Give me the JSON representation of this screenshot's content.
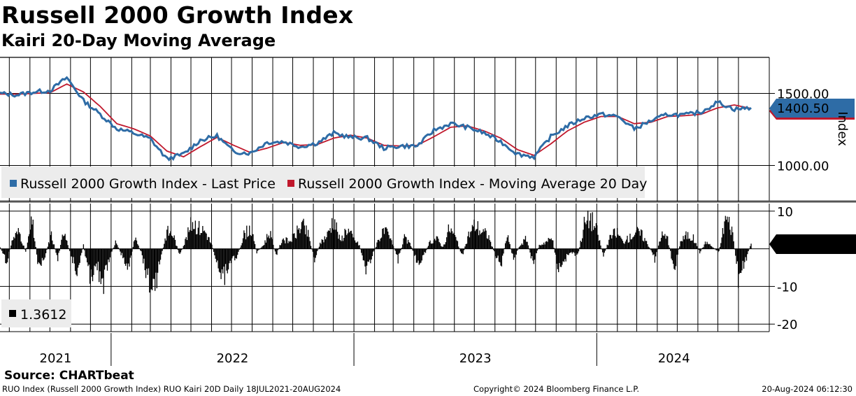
{
  "header": {
    "title": "Russell 2000 Growth Index",
    "subtitle": "Kairi 20-Day Moving Average"
  },
  "chart_data": [
    {
      "type": "line",
      "panel": "price",
      "y_axis_label": "Index",
      "ylim": [
        750,
        1750
      ],
      "y_ticks": [
        1000,
        1500
      ],
      "y_tick_labels": [
        "1000.00",
        "1500.00"
      ],
      "x_tick_labels": [
        "2021",
        "2022",
        "2023",
        "2024"
      ],
      "x_range": [
        "2021-07-18",
        "2024-08-20"
      ],
      "x_step_months": 1,
      "series": [
        {
          "name": "Russell 2000 Growth Index - Last Price",
          "color": "#2e6ca6",
          "last_value_label": "1400.50",
          "values": [
            1500,
            1490,
            1510,
            1520,
            1610,
            1450,
            1355,
            1255,
            1225,
            1185,
            1045,
            1080,
            1175,
            1205,
            1095,
            1085,
            1160,
            1165,
            1130,
            1155,
            1225,
            1195,
            1190,
            1120,
            1135,
            1135,
            1245,
            1290,
            1265,
            1225,
            1165,
            1080,
            1060,
            1200,
            1275,
            1330,
            1355,
            1340,
            1255,
            1310,
            1355,
            1350,
            1370,
            1440,
            1390,
            1400
          ]
        },
        {
          "name": "Russell 2000 Growth Index - Moving Average 20 Day",
          "color": "#c0182c",
          "values": [
            1495,
            1495,
            1500,
            1505,
            1565,
            1510,
            1410,
            1290,
            1255,
            1205,
            1100,
            1060,
            1130,
            1195,
            1140,
            1090,
            1120,
            1160,
            1140,
            1145,
            1190,
            1210,
            1190,
            1140,
            1135,
            1140,
            1200,
            1265,
            1275,
            1240,
            1190,
            1110,
            1070,
            1150,
            1240,
            1300,
            1340,
            1340,
            1290,
            1300,
            1340,
            1345,
            1355,
            1400,
            1420,
            1395
          ]
        }
      ]
    },
    {
      "type": "bar",
      "panel": "kairi",
      "ylim": [
        -22,
        12
      ],
      "y_ticks": [
        10,
        -10,
        -20
      ],
      "y_tick_labels": [
        "10",
        "-10",
        "-20"
      ],
      "series": [
        {
          "name": "RUO Kairi 20D",
          "color": "#000000",
          "last_value_label": "1.3612",
          "values": [
            0.5,
            -4,
            3,
            5,
            -1,
            8,
            -5,
            -2,
            4,
            -3,
            6,
            -2,
            -6,
            1,
            -9,
            -4,
            -11,
            -3,
            2,
            -2,
            -6,
            3,
            -1,
            -8,
            -12,
            -3,
            5,
            4,
            -2,
            3,
            8,
            6,
            5,
            1,
            -5,
            -8,
            -3,
            -2,
            4,
            6,
            -1,
            1,
            5,
            -2,
            3,
            2,
            4,
            7,
            4,
            -3,
            2,
            4,
            9,
            2,
            6,
            3,
            1,
            -6,
            -2,
            3,
            5,
            2,
            -3,
            3,
            1,
            -4,
            -2,
            2,
            3,
            0.5,
            6,
            3,
            -2,
            4,
            7,
            5,
            4,
            -1,
            -5,
            4,
            -3,
            1,
            3,
            -4,
            1,
            2,
            3,
            -6,
            -3,
            -1,
            -2,
            7,
            9,
            5,
            -2,
            3,
            5,
            2,
            3,
            5,
            4,
            1,
            -3,
            4,
            3,
            -6,
            2,
            4,
            3,
            -1,
            2,
            0.5,
            -1,
            9,
            6,
            -8,
            -4,
            1.3612
          ]
        }
      ]
    }
  ],
  "legend": {
    "price_entries": [
      {
        "label": "Russell 2000 Growth Index - Last Price",
        "color": "#2e6ca6"
      },
      {
        "label": "Russell 2000 Growth Index - Moving Average 20 Day",
        "color": "#c0182c"
      }
    ],
    "kairi_entry": {
      "label": "1.3612",
      "color": "#000000"
    }
  },
  "footer": {
    "source": "Source: CHARTbeat",
    "left": "RUO Index (Russell 2000 Growth Index) RUO Kairi 20D  Daily 18JUL2021-20AUG2024",
    "center": "Copyright© 2024 Bloomberg Finance L.P.",
    "right": "20-Aug-2024 06:12:30"
  }
}
